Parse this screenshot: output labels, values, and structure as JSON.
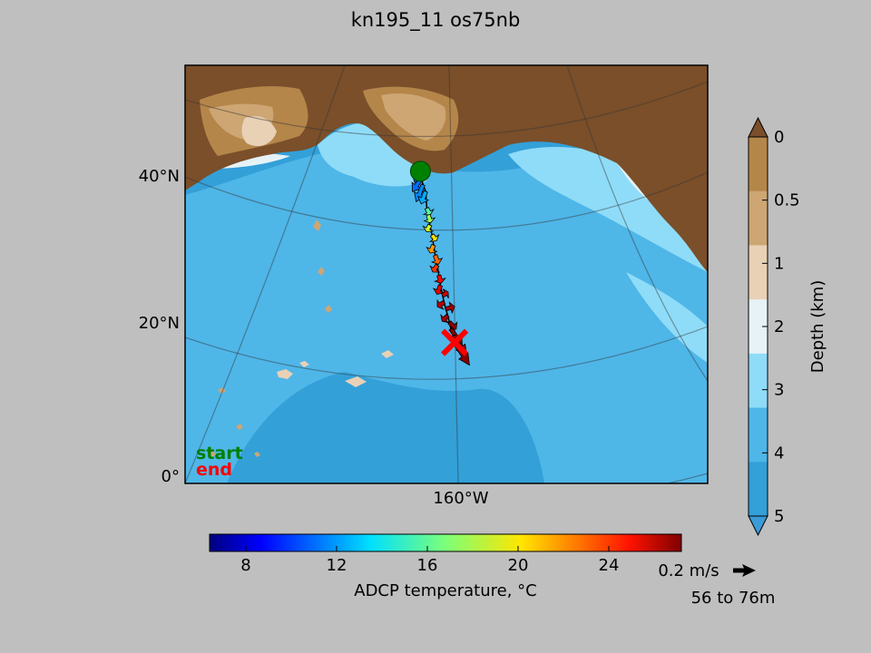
{
  "chart_data": {
    "type": "scatter",
    "title": "kn195_11 os75nb",
    "map": {
      "lat_ticks": [
        "40°N",
        "20°N",
        "0°"
      ],
      "lon_ticks": [
        "160°W"
      ],
      "colors": {
        "land": "#7a4f2a",
        "ocean_deep": "#33a0d8",
        "ocean_mid": "#4fb6e8",
        "ocean_shallow": "#8fdcf8",
        "shelf": "#e6f2f6",
        "coast_light": "#e9d1b6",
        "coast_tan": "#cda674",
        "coast_brown": "#b5864a",
        "track": "#000000"
      }
    },
    "track_annotation": {
      "start_label": "start",
      "end_label": "end",
      "start_color": "#008000",
      "end_color": "#ff0000"
    },
    "depth_colorbar": {
      "label": "Depth (km)",
      "ticks": [
        "0",
        "0.5",
        "1",
        "2",
        "3",
        "4",
        "5"
      ],
      "colors": [
        "#b5864a",
        "#cda674",
        "#e9d1b6",
        "#e6f2f6",
        "#8fdcf8",
        "#4fb6e8",
        "#33a0d8"
      ],
      "extend_top_color": "#7a4f2a",
      "extend_bottom_color": "#3a9bd6"
    },
    "temperature_colorbar": {
      "label": "ADCP temperature, °C",
      "ticks": [
        8,
        12,
        16,
        20,
        24
      ],
      "range": [
        6.4,
        27.2
      ],
      "colormap": "jet"
    },
    "vector_key": {
      "label": "0.2 m/s",
      "depth_range": "56 to 76m"
    },
    "series": [
      {
        "values": [
          {
            "lat": 46.5,
            "lon": -167.0,
            "temp": 10.5,
            "u": -0.05,
            "v": -0.1
          },
          {
            "lat": 45.5,
            "lon": -166.8,
            "temp": 11.2,
            "u": -0.08,
            "v": -0.12
          },
          {
            "lat": 44.5,
            "lon": -166.5,
            "temp": 11.8,
            "u": -0.06,
            "v": -0.15
          },
          {
            "lat": 43.5,
            "lon": -166.0,
            "temp": 12.5,
            "u": -0.04,
            "v": -0.11
          },
          {
            "lat": 41.0,
            "lon": -165.8,
            "temp": 16.0,
            "u": 0.03,
            "v": -0.06
          },
          {
            "lat": 40.0,
            "lon": -165.5,
            "temp": 17.5,
            "u": 0.02,
            "v": -0.07
          },
          {
            "lat": 38.5,
            "lon": -165.2,
            "temp": 18.5,
            "u": -0.03,
            "v": -0.06
          },
          {
            "lat": 37.0,
            "lon": -164.8,
            "temp": 20.0,
            "u": 0.04,
            "v": -0.05
          },
          {
            "lat": 35.5,
            "lon": -164.5,
            "temp": 21.5,
            "u": -0.03,
            "v": -0.07
          },
          {
            "lat": 34.0,
            "lon": -164.2,
            "temp": 22.5,
            "u": 0.03,
            "v": -0.08
          },
          {
            "lat": 32.5,
            "lon": -163.8,
            "temp": 23.5,
            "u": -0.04,
            "v": -0.06
          },
          {
            "lat": 31.0,
            "lon": -163.5,
            "temp": 24.5,
            "u": 0.02,
            "v": -0.07
          },
          {
            "lat": 29.5,
            "lon": -163.2,
            "temp": 25.0,
            "u": -0.03,
            "v": -0.08
          },
          {
            "lat": 28.0,
            "lon": -162.8,
            "temp": 25.5,
            "u": 0.05,
            "v": 0.03
          },
          {
            "lat": 27.0,
            "lon": -162.5,
            "temp": 26.0,
            "u": -0.06,
            "v": -0.04
          },
          {
            "lat": 26.0,
            "lon": -162.2,
            "temp": 26.5,
            "u": 0.08,
            "v": 0.02
          },
          {
            "lat": 25.0,
            "lon": -161.8,
            "temp": 26.5,
            "u": -0.05,
            "v": -0.05
          },
          {
            "lat": 24.0,
            "lon": -161.5,
            "temp": 26.8,
            "u": 0.06,
            "v": -0.06
          },
          {
            "lat": 23.0,
            "lon": -161.2,
            "temp": 27.0,
            "u": 0.1,
            "v": -0.15
          },
          {
            "lat": 22.0,
            "lon": -160.8,
            "temp": 27.0,
            "u": 0.12,
            "v": -0.18
          },
          {
            "lat": 21.0,
            "lon": -160.5,
            "temp": 27.0,
            "u": 0.13,
            "v": -0.2
          }
        ]
      }
    ]
  }
}
